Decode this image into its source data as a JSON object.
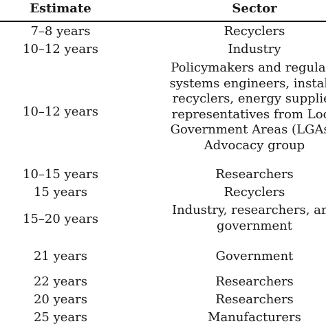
{
  "table": {
    "headers": {
      "estimate": "Estimate",
      "sector": "Sector"
    },
    "rows": [
      {
        "estimate": "7–8 years",
        "sector": [
          "Recyclers"
        ]
      },
      {
        "estimate": "10–12 years",
        "sector": [
          "Industry"
        ]
      },
      {
        "estimate": "10–12 years",
        "sector": [
          "Policymakers and regulato",
          "systems engineers, installe",
          "recyclers, energy supplier",
          "representatives from Loca",
          "Government Areas (LGAs),",
          "Advocacy group"
        ]
      },
      {
        "estimate": "10–15 years",
        "sector": [
          "Researchers"
        ]
      },
      {
        "estimate": "15 years",
        "sector": [
          "Recyclers"
        ]
      },
      {
        "estimate": "15–20 years",
        "sector": [
          "Industry, researchers, and",
          "government"
        ]
      },
      {
        "estimate": "21 years",
        "sector": [
          "Government"
        ]
      },
      {
        "estimate": "22 years",
        "sector": [
          "Researchers"
        ]
      },
      {
        "estimate": "20 years",
        "sector": [
          "Researchers"
        ]
      },
      {
        "estimate": "25 years",
        "sector": [
          "Manufacturers"
        ]
      }
    ]
  }
}
